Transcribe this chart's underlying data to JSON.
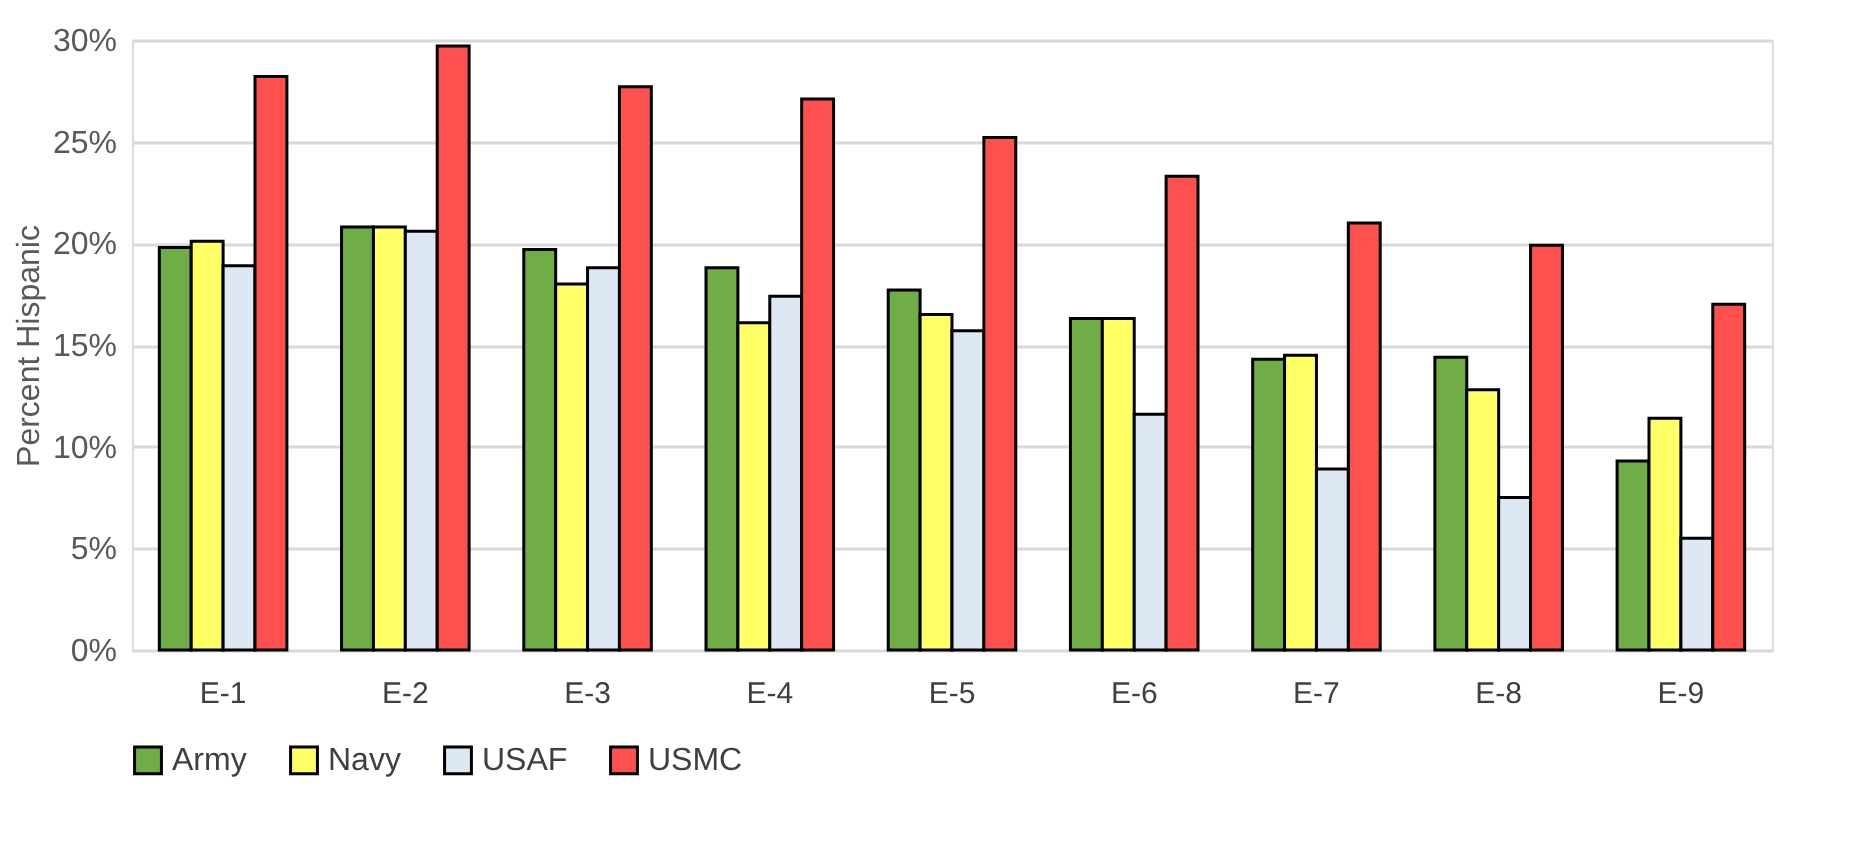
{
  "chart_data": {
    "type": "bar",
    "ylabel": "Percent Hispanic",
    "categories": [
      "E-1",
      "E-2",
      "E-3",
      "E-4",
      "E-5",
      "E-6",
      "E-7",
      "E-8",
      "E-9"
    ],
    "series": [
      {
        "name": "Army",
        "color": "#70ad47",
        "values": [
          19.8,
          20.8,
          19.7,
          18.8,
          17.7,
          16.3,
          14.3,
          14.4,
          9.3
        ]
      },
      {
        "name": "Navy",
        "color": "#ffff66",
        "values": [
          20.1,
          20.8,
          18.0,
          16.1,
          16.5,
          16.3,
          14.5,
          12.8,
          11.4
        ]
      },
      {
        "name": "USAF",
        "color": "#dee8f4",
        "values": [
          18.9,
          20.6,
          18.8,
          17.4,
          15.7,
          11.6,
          8.9,
          7.5,
          5.5
        ]
      },
      {
        "name": "USMC",
        "color": "#ff5050",
        "values": [
          28.2,
          29.7,
          27.7,
          27.1,
          25.2,
          23.3,
          21.0,
          19.9,
          17.0
        ]
      }
    ],
    "ylim": [
      0,
      30
    ],
    "yticks": [
      {
        "value": 0,
        "label": "0%"
      },
      {
        "value": 5,
        "label": "5%"
      },
      {
        "value": 10,
        "label": "10%"
      },
      {
        "value": 15,
        "label": "15%"
      },
      {
        "value": 20,
        "label": "20%"
      },
      {
        "value": 25,
        "label": "25%"
      },
      {
        "value": 30,
        "label": "30%"
      }
    ],
    "grid": "y",
    "legend": "bottom"
  }
}
